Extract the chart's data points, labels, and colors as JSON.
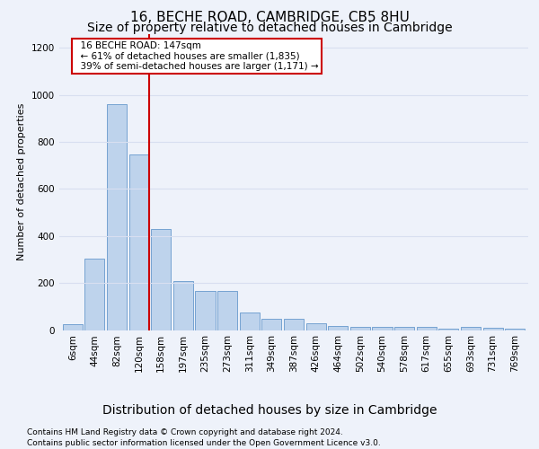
{
  "title": "16, BECHE ROAD, CAMBRIDGE, CB5 8HU",
  "subtitle": "Size of property relative to detached houses in Cambridge",
  "xlabel": "Distribution of detached houses by size in Cambridge",
  "ylabel": "Number of detached properties",
  "footer_line1": "Contains HM Land Registry data © Crown copyright and database right 2024.",
  "footer_line2": "Contains public sector information licensed under the Open Government Licence v3.0.",
  "annotation_line1": "16 BECHE ROAD: 147sqm",
  "annotation_line2": "← 61% of detached houses are smaller (1,835)",
  "annotation_line3": "39% of semi-detached houses are larger (1,171) →",
  "bar_labels": [
    "6sqm",
    "44sqm",
    "82sqm",
    "120sqm",
    "158sqm",
    "197sqm",
    "235sqm",
    "273sqm",
    "311sqm",
    "349sqm",
    "387sqm",
    "426sqm",
    "464sqm",
    "502sqm",
    "540sqm",
    "578sqm",
    "617sqm",
    "655sqm",
    "693sqm",
    "731sqm",
    "769sqm"
  ],
  "bar_values": [
    25,
    305,
    960,
    745,
    430,
    210,
    165,
    165,
    75,
    48,
    48,
    30,
    18,
    13,
    13,
    13,
    13,
    5,
    13,
    10,
    5
  ],
  "bar_color": "#bed3ec",
  "bar_edge_color": "#6699cc",
  "redline_after_bar": 3,
  "redline_color": "#cc0000",
  "ylim": [
    0,
    1260
  ],
  "yticks": [
    0,
    200,
    400,
    600,
    800,
    1000,
    1200
  ],
  "background_color": "#eef2fa",
  "grid_color": "#d8dff0",
  "annotation_box_color": "#ffffff",
  "annotation_box_edge": "#cc0000",
  "title_fontsize": 11,
  "subtitle_fontsize": 10,
  "xlabel_fontsize": 10,
  "ylabel_fontsize": 8,
  "tick_fontsize": 7.5,
  "annotation_fontsize": 7.5,
  "footer_fontsize": 6.5
}
